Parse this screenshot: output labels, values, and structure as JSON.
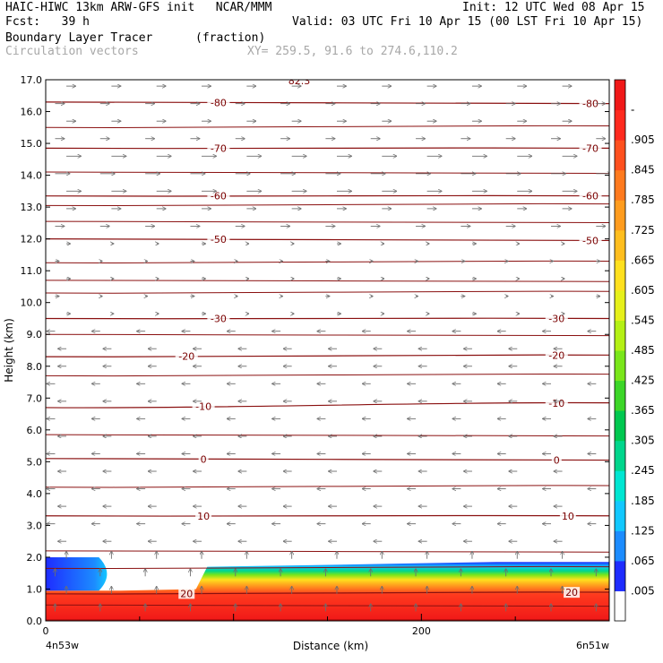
{
  "header": {
    "title_left": "HAIC-HIWC 13km ARW-GFS init   NCAR/MMM",
    "init": "Init: 12 UTC Wed 08 Apr 15",
    "fcst": "Fcst:   39 h",
    "valid": "Valid: 03 UTC Fri 10 Apr 15 (00 LST Fri 10 Apr 15)",
    "field_name": "Boundary Layer Tracer",
    "field_units": "(fraction)",
    "vector_name": "Circulation vectors",
    "xy": "XY= 259.5, 91.6 to 274.6,110.2"
  },
  "chart_data": {
    "type": "heatmap",
    "xlabel": "Distance (km)",
    "ylabel": "Height (km)",
    "xlim": [
      0,
      300
    ],
    "ylim": [
      0,
      17
    ],
    "x_ticks": [
      0,
      200
    ],
    "x_tick_labels": [
      "0",
      "200"
    ],
    "x_end_labels": [
      "4n53w",
      "6n51w"
    ],
    "y_ticks": [
      0,
      1,
      2,
      3,
      4,
      5,
      6,
      7,
      8,
      9,
      10,
      11,
      12,
      13,
      14,
      15,
      16,
      17
    ],
    "y_tick_labels": [
      "0.0",
      "1.0",
      "2.0",
      "3.0",
      "4.0",
      "5.0",
      "6.0",
      "7.0",
      "8.0",
      "9.0",
      "10.0",
      "11.0",
      "12.0",
      "13.0",
      "14.0",
      "15.0",
      "16.0",
      "17.0"
    ],
    "colorbar": {
      "labels": [
        ".005",
        ".065",
        ".125",
        ".185",
        ".245",
        ".305",
        ".365",
        ".425",
        ".485",
        ".545",
        ".605",
        ".665",
        ".725",
        ".785",
        ".845",
        ".905",
        "-"
      ],
      "colors": [
        "#ffffff",
        "#1e2cff",
        "#1c8cff",
        "#12c8ff",
        "#00e6d2",
        "#00d68c",
        "#00c850",
        "#3cd628",
        "#7ae61a",
        "#b4f014",
        "#e6f01a",
        "#ffe01e",
        "#ffbe1e",
        "#ff9c1e",
        "#ff7a1e",
        "#ff501e",
        "#ff2a1e",
        "#f01818"
      ]
    },
    "tracer_layer": [
      {
        "x": 0,
        "top": 0.95
      },
      {
        "x": 40,
        "top": 0.95
      },
      {
        "x": 80,
        "top": 1.0
      },
      {
        "x": 86,
        "top": 1.7
      },
      {
        "x": 140,
        "top": 1.75
      },
      {
        "x": 190,
        "top": 1.8
      },
      {
        "x": 240,
        "top": 1.85
      },
      {
        "x": 300,
        "top": 1.85
      }
    ],
    "tracer_upper_left": {
      "x_end": 35,
      "bottom": 0.95,
      "top": 2.0
    },
    "temperature_contours": [
      {
        "label": "20",
        "y_left": 0.85,
        "y_right": 0.9,
        "label_x": [
          75,
          280
        ]
      },
      {
        "label": "10",
        "y_left": 3.3,
        "y_right": 3.3,
        "label_x": [
          84,
          278
        ]
      },
      {
        "label": "0",
        "y_left": 5.1,
        "y_right": 5.05,
        "label_x": [
          84,
          272
        ]
      },
      {
        "label": "-10",
        "y_left": 6.7,
        "y_right": 6.85,
        "label_x": [
          84,
          272
        ]
      },
      {
        "label": "-20",
        "y_left": 8.3,
        "y_right": 8.35,
        "label_x": [
          75,
          272
        ]
      },
      {
        "label": "-30",
        "y_left": 9.5,
        "y_right": 9.5,
        "label_x": [
          92,
          272
        ]
      },
      {
        "label": "-50",
        "y_left": 12.0,
        "y_right": 11.95,
        "label_x": [
          92,
          290
        ]
      },
      {
        "label": "-60",
        "y_left": 13.35,
        "y_right": 13.35,
        "label_x": [
          92,
          290
        ]
      },
      {
        "label": "-70",
        "y_left": 14.85,
        "y_right": 14.85,
        "label_x": [
          92,
          290
        ]
      },
      {
        "label": "-80",
        "y_left": 16.3,
        "y_right": 16.25,
        "label_x": [
          92,
          290
        ]
      }
    ],
    "other_isotherms_km": [
      0.5,
      1.65,
      2.2,
      4.2,
      5.85,
      7.7,
      9.0,
      10.3,
      10.7,
      11.25,
      12.55,
      13.05,
      14.1,
      15.5
    ],
    "top_partial_label": "82.3"
  }
}
